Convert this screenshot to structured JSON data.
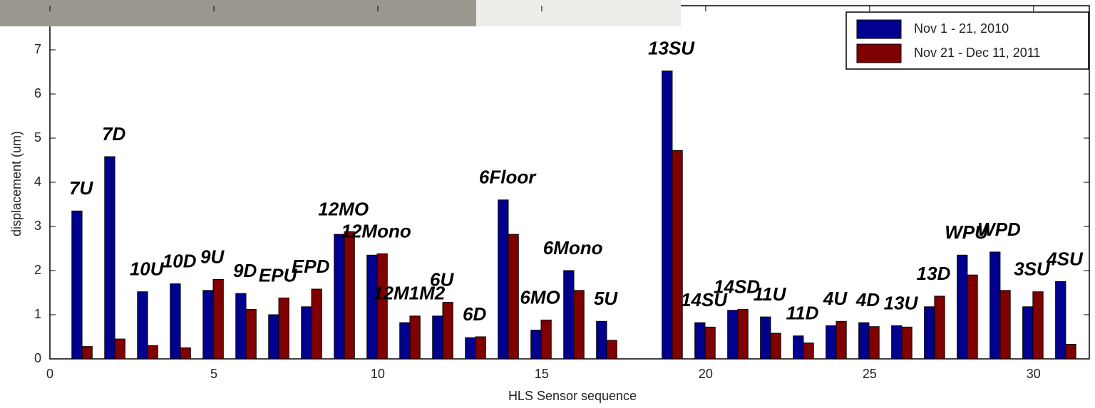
{
  "chart_data": {
    "type": "bar",
    "x_label": "HLS Sensor sequence",
    "y_label": "displacement (um)",
    "x": [
      1,
      2,
      3,
      4,
      5,
      6,
      7,
      8,
      9,
      10,
      11,
      12,
      13,
      14,
      15,
      16,
      17,
      19,
      20,
      21,
      22,
      23,
      24,
      25,
      26,
      27,
      28,
      29,
      30,
      31
    ],
    "bar_labels": [
      "7U",
      "7D",
      "10U",
      "10D",
      "9U",
      "9D",
      "EPU",
      "EPD",
      "12MO",
      "12Mono",
      "12M1M2",
      "6U",
      "6D",
      "6Floor",
      "6MO",
      "6Mono",
      "5U",
      "13SU",
      "14SU",
      "14SD",
      "11U",
      "11D",
      "4U",
      "4D",
      "13U",
      "13D",
      "WPU",
      "WPD",
      "3SU",
      "4SU"
    ],
    "series": [
      {
        "name": "Nov 1 - 21, 2010",
        "color": "#00008f",
        "values": [
          3.35,
          4.58,
          1.52,
          1.7,
          1.55,
          1.48,
          1.0,
          1.18,
          2.82,
          2.35,
          0.82,
          0.97,
          0.48,
          3.6,
          0.65,
          2.0,
          0.85,
          6.52,
          0.82,
          1.1,
          0.95,
          0.52,
          0.75,
          0.82,
          0.75,
          1.18,
          2.35,
          2.42,
          1.18,
          1.75
        ]
      },
      {
        "name": "Nov 21 - Dec 11, 2011",
        "color": "#800000",
        "values": [
          0.28,
          0.45,
          0.3,
          0.25,
          1.8,
          1.12,
          1.38,
          1.58,
          2.88,
          2.38,
          0.97,
          1.28,
          0.5,
          2.82,
          0.88,
          1.55,
          0.42,
          4.72,
          0.72,
          1.12,
          0.58,
          0.36,
          0.85,
          0.73,
          0.72,
          1.42,
          1.9,
          1.55,
          1.52,
          0.33
        ]
      }
    ],
    "xlim": [
      0,
      31.7
    ],
    "ylim": [
      0,
      8
    ],
    "xticks": [
      0,
      5,
      10,
      15,
      20,
      25,
      30
    ],
    "yticks": [
      0,
      1,
      2,
      3,
      4,
      5,
      6,
      7
    ],
    "legend": "upper right"
  }
}
